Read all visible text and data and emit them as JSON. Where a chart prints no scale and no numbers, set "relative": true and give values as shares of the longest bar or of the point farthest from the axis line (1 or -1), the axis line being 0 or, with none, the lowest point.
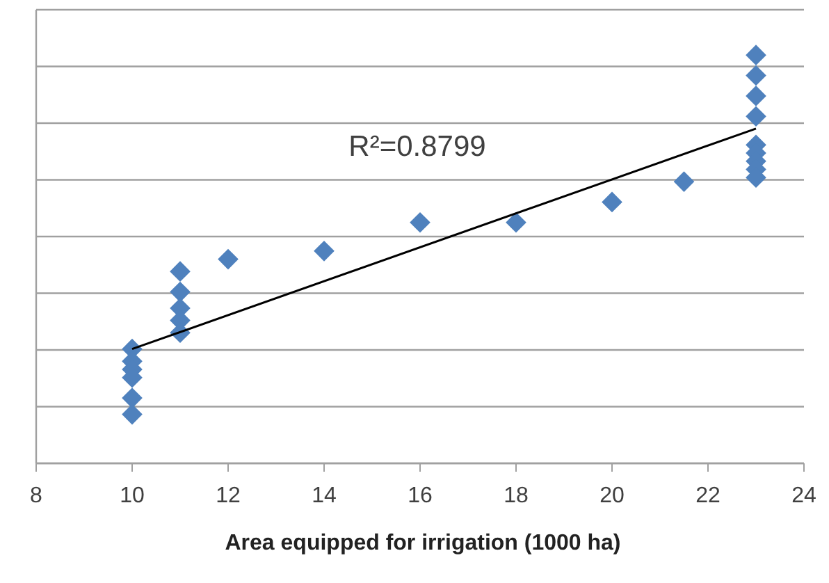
{
  "chart_data": {
    "type": "scatter",
    "xlabel": "Area equipped for irrigation (1000 ha)",
    "relative": true,
    "xlim": [
      8,
      24
    ],
    "xticks": [
      8,
      10,
      12,
      14,
      16,
      18,
      20,
      22,
      24
    ],
    "grid": "y",
    "tick_labels": "x",
    "annotations": [
      "R²=0.8799"
    ],
    "series": [
      {
        "color": "#4f81bd",
        "marker": "diamond",
        "x": [
          10,
          10,
          10,
          10,
          10,
          10,
          11,
          11,
          11,
          11,
          11,
          12,
          14,
          16,
          18,
          20,
          21.5,
          23,
          23,
          23,
          23,
          23,
          23,
          23,
          23,
          23
        ],
        "values": [
          0.28,
          0.25,
          0.23,
          0.21,
          0.16,
          0.12,
          0.47,
          0.42,
          0.38,
          0.35,
          0.32,
          0.5,
          0.52,
          0.59,
          0.59,
          0.64,
          0.69,
          1,
          0.95,
          0.9,
          0.85,
          0.78,
          0.76,
          0.74,
          0.72,
          0.7
        ]
      },
      {
        "type": "line",
        "color": "#000000",
        "marker": "none",
        "x": [
          10,
          23
        ],
        "values": [
          0.28,
          0.82
        ]
      }
    ]
  }
}
